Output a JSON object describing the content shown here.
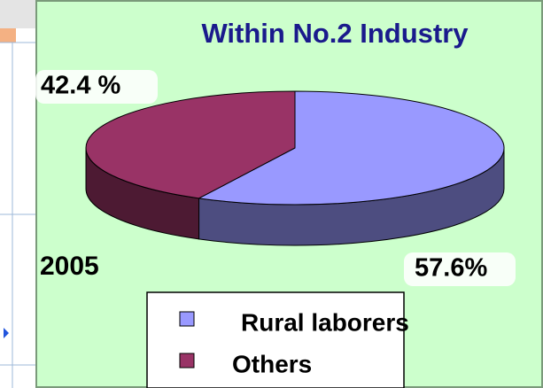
{
  "chart_data": {
    "type": "pie",
    "title": "Within No.2 Industry",
    "categories": [
      "Rural laborers",
      "Others"
    ],
    "values": [
      57.6,
      42.4
    ],
    "value_labels": [
      "57.6%",
      "42.4 %"
    ],
    "colors": [
      "#9999ff",
      "#993366"
    ],
    "side_colors": [
      "#4d4d80",
      "#4d1a33"
    ],
    "annotation": "2005"
  }
}
